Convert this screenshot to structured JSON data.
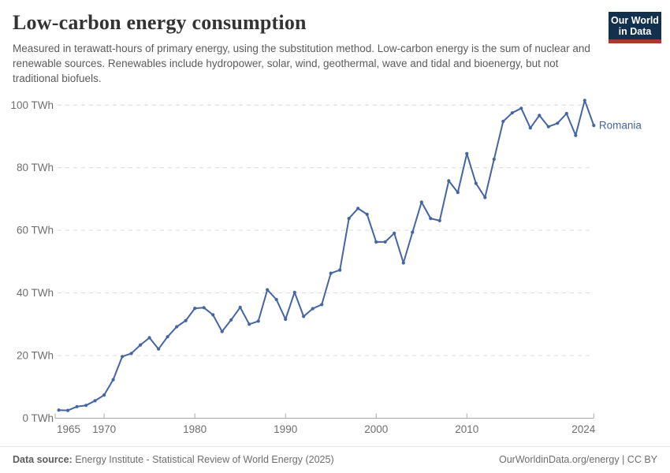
{
  "header": {
    "title": "Low-carbon energy consumption",
    "subtitle": "Measured in terawatt-hours of primary energy, using the substitution method. Low-carbon energy is the sum of nuclear and renewable sources. Renewables include hydropower, solar, wind, geothermal, wave and tidal and bioenergy, but not traditional biofuels.",
    "logo": {
      "line1": "Our World",
      "line2": "in Data",
      "bg_color": "#14304f",
      "bar_color": "#a8392e"
    }
  },
  "chart_data": {
    "type": "line",
    "title": "Low-carbon energy consumption",
    "unit": "TWh",
    "grid": "horizontal-dashed",
    "legend_position": "end-of-line-label",
    "xlim": [
      1965,
      2024
    ],
    "ylim": [
      0,
      105
    ],
    "x_tick_labels": [
      "1965",
      "1970",
      "1980",
      "1990",
      "2000",
      "2010",
      "2024"
    ],
    "x_ticks": [
      1965,
      1970,
      1980,
      1990,
      2000,
      2010,
      2024
    ],
    "y_ticks": [
      0,
      20,
      40,
      60,
      80,
      100
    ],
    "y_tick_labels": [
      "0 TWh",
      "20 TWh",
      "40 TWh",
      "60 TWh",
      "80 TWh",
      "100 TWh"
    ],
    "series": [
      {
        "name": "Romania",
        "color": "#4565a2",
        "x": [
          1965,
          1966,
          1967,
          1968,
          1969,
          1970,
          1971,
          1972,
          1973,
          1974,
          1975,
          1976,
          1977,
          1978,
          1979,
          1980,
          1981,
          1982,
          1983,
          1984,
          1985,
          1986,
          1987,
          1988,
          1989,
          1990,
          1991,
          1992,
          1993,
          1994,
          1995,
          1996,
          1997,
          1998,
          1999,
          2000,
          2001,
          2002,
          2003,
          2004,
          2005,
          2006,
          2007,
          2008,
          2009,
          2010,
          2011,
          2012,
          2013,
          2014,
          2015,
          2016,
          2017,
          2018,
          2019,
          2020,
          2021,
          2022,
          2023,
          2024
        ],
        "values": [
          2.6,
          2.5,
          3.7,
          4.1,
          5.6,
          7.4,
          12.3,
          19.7,
          20.7,
          23.4,
          25.7,
          22.1,
          26.0,
          29.2,
          31.2,
          35.1,
          35.3,
          33.0,
          27.7,
          31.4,
          35.4,
          30.0,
          31.0,
          41.0,
          37.9,
          31.6,
          40.2,
          32.5,
          35.0,
          36.3,
          46.3,
          47.3,
          63.8,
          67.0,
          65.1,
          56.3,
          56.3,
          59.1,
          49.6,
          59.4,
          69.0,
          63.8,
          63.1,
          75.8,
          72.1,
          84.5,
          75.0,
          70.5,
          82.7,
          94.8,
          97.5,
          99.0,
          92.7,
          96.7,
          93.1,
          94.2,
          97.3,
          90.3,
          101.5,
          93.5
        ]
      }
    ],
    "colors": {
      "line": "#4565a2",
      "grid": "#d9d9d9",
      "axis": "#a8a8a8",
      "tick_label": "#6e6e6e"
    }
  },
  "footer": {
    "source_label": "Data source:",
    "source_text": "Energy Institute - Statistical Review of World Energy (2025)",
    "right_text": "OurWorldinData.org/energy | CC BY"
  }
}
